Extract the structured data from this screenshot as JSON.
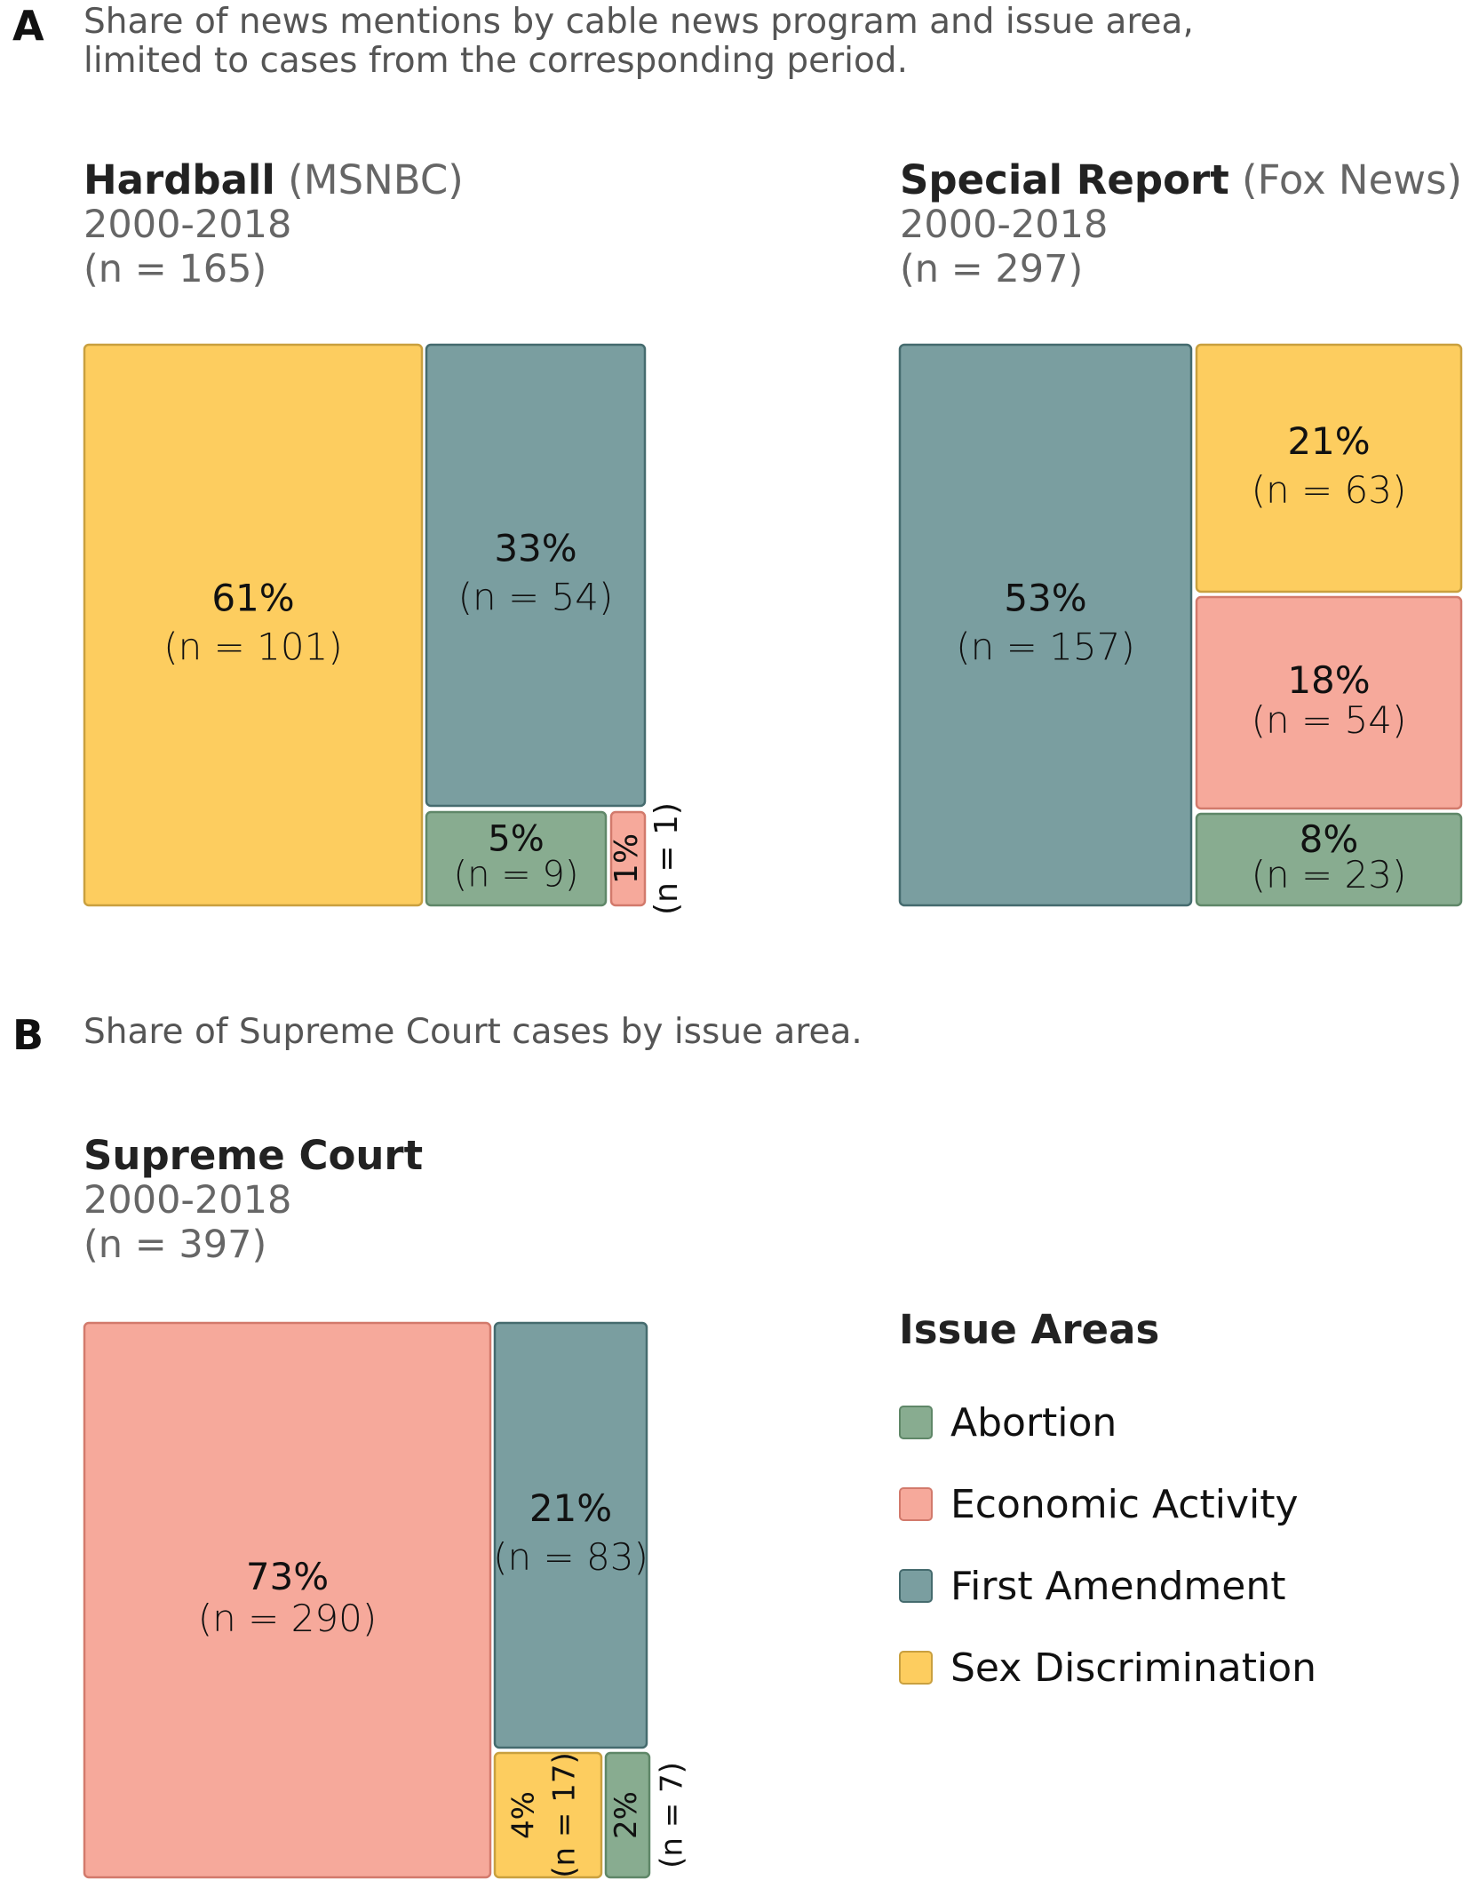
{
  "panels": {
    "a": {
      "letter": "A",
      "subtitle": "Share of news mentions by cable news program and issue area,\nlimited to cases from the corresponding period."
    },
    "b": {
      "letter": "B",
      "subtitle": "Share of Supreme Court cases by issue area."
    }
  },
  "colors": {
    "Abortion": {
      "fill": "#88ac90",
      "stroke": "#5f8768"
    },
    "Economic Activity": {
      "fill": "#f6a99b",
      "stroke": "#d27a6c"
    },
    "First Amendment": {
      "fill": "#7a9ea0",
      "stroke": "#456b6e"
    },
    "Sex Discrimination": {
      "fill": "#fdcd5f",
      "stroke": "#c9a03f"
    }
  },
  "legend": {
    "title": "Issue Areas",
    "items": [
      {
        "label": "Abortion",
        "color": "#88ac90"
      },
      {
        "label": "Economic Activity",
        "color": "#f6a99b"
      },
      {
        "label": "First Amendment",
        "color": "#7a9ea0"
      },
      {
        "label": "Sex Discrimination",
        "color": "#fdcd5f"
      }
    ]
  },
  "chart_data": [
    {
      "type": "treemap",
      "title": "Hardball",
      "network": "(MSNBC)",
      "period": "2000-2018",
      "total_label": "(n = 165)",
      "total": 165,
      "cells": [
        {
          "category": "Sex Discrimination",
          "percent_label": "61%",
          "n_label": "(n = 101)",
          "n": 101
        },
        {
          "category": "First Amendment",
          "percent_label": "33%",
          "n_label": "(n = 54)",
          "n": 54
        },
        {
          "category": "Abortion",
          "percent_label": "5%",
          "n_label": "(n = 9)",
          "n": 9
        },
        {
          "category": "Economic Activity",
          "percent_label": "1%",
          "n_label": "(n = 1)",
          "n": 1
        }
      ]
    },
    {
      "type": "treemap",
      "title": "Special Report",
      "network": "(Fox News)",
      "period": "2000-2018",
      "total_label": "(n = 297)",
      "total": 297,
      "cells": [
        {
          "category": "First Amendment",
          "percent_label": "53%",
          "n_label": "(n = 157)",
          "n": 157
        },
        {
          "category": "Sex Discrimination",
          "percent_label": "21%",
          "n_label": "(n = 63)",
          "n": 63
        },
        {
          "category": "Economic Activity",
          "percent_label": "18%",
          "n_label": "(n = 54)",
          "n": 54
        },
        {
          "category": "Abortion",
          "percent_label": "8%",
          "n_label": "(n = 23)",
          "n": 23
        }
      ]
    },
    {
      "type": "treemap",
      "title": "Supreme Court",
      "network": "",
      "period": "2000-2018",
      "total_label": "(n = 397)",
      "total": 397,
      "cells": [
        {
          "category": "Economic Activity",
          "percent_label": "73%",
          "n_label": "(n = 290)",
          "n": 290
        },
        {
          "category": "First Amendment",
          "percent_label": "21%",
          "n_label": "(n = 83)",
          "n": 83
        },
        {
          "category": "Sex Discrimination",
          "percent_label": "4%",
          "n_label": "(n = 17)",
          "n": 17
        },
        {
          "category": "Abortion",
          "percent_label": "2%",
          "n_label": "(n = 7)",
          "n": 7
        }
      ]
    }
  ]
}
